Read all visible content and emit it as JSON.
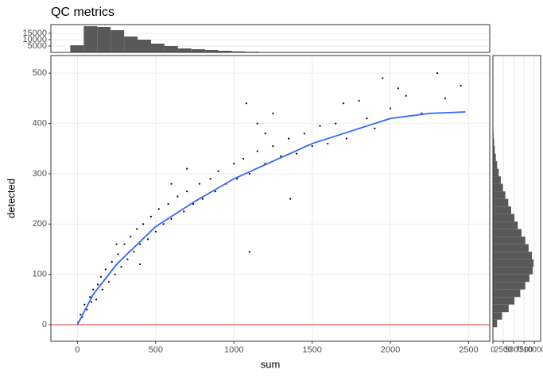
{
  "chart_data": [
    {
      "type": "scatter",
      "title": "QC metrics",
      "x_label": "sum",
      "y_label": "detected",
      "x": [
        5,
        20,
        30,
        45,
        60,
        80,
        90,
        100,
        120,
        130,
        150,
        160,
        180,
        200,
        220,
        240,
        260,
        280,
        300,
        320,
        340,
        360,
        380,
        400,
        420,
        450,
        470,
        500,
        520,
        550,
        580,
        600,
        640,
        680,
        700,
        740,
        780,
        800,
        850,
        880,
        900,
        950,
        1000,
        1020,
        1060,
        1100,
        1150,
        1200,
        1250,
        1300,
        1350,
        1400,
        1450,
        1500,
        1550,
        1600,
        1650,
        1700,
        1720,
        1800,
        1850,
        1900,
        1950,
        2000,
        2050,
        2100,
        2200,
        2300,
        2450,
        2350,
        1100,
        1080,
        1150,
        1250,
        1360,
        700,
        250,
        400,
        600,
        1200
      ],
      "y": [
        5,
        20,
        15,
        40,
        30,
        55,
        45,
        70,
        50,
        80,
        95,
        70,
        110,
        85,
        125,
        100,
        140,
        115,
        160,
        130,
        175,
        145,
        190,
        160,
        200,
        170,
        215,
        185,
        230,
        200,
        240,
        210,
        255,
        225,
        265,
        240,
        280,
        250,
        290,
        265,
        305,
        280,
        320,
        290,
        330,
        300,
        345,
        320,
        355,
        335,
        370,
        340,
        380,
        355,
        395,
        360,
        400,
        440,
        370,
        445,
        410,
        390,
        490,
        430,
        470,
        455,
        420,
        500,
        475,
        450,
        145,
        440,
        400,
        420,
        250,
        310,
        160,
        120,
        280,
        380
      ],
      "color": "#000000",
      "smooth": {
        "x": [
          0,
          100,
          250,
          500,
          750,
          1000,
          1250,
          1500,
          1750,
          2000,
          2250,
          2480
        ],
        "y": [
          0,
          60,
          120,
          195,
          245,
          290,
          325,
          360,
          385,
          410,
          420,
          423
        ],
        "color": "#3366ff"
      },
      "hline": {
        "value": 0,
        "color": "#e8302a"
      },
      "xlim": [
        -170,
        2635
      ],
      "ylim": [
        -33,
        535
      ],
      "xticks": [
        0,
        500,
        1000,
        1500,
        2000,
        2500
      ],
      "yticks": [
        0,
        100,
        200,
        300,
        400,
        500
      ],
      "grid": true
    },
    {
      "type": "histogram",
      "orientation": "vertical",
      "bins": [
        -46,
        40,
        126,
        212,
        298,
        384,
        470,
        556,
        642,
        728,
        814,
        900,
        986,
        1072,
        1158,
        1244,
        1330,
        1416
      ],
      "counts": [
        5600,
        20600,
        20000,
        17500,
        12500,
        10000,
        6900,
        5000,
        3100,
        2500,
        1900,
        1250,
        800,
        500,
        300,
        200,
        100
      ],
      "color": "#595959",
      "xlim": [
        -170,
        2635
      ],
      "ylim": [
        0,
        21875
      ],
      "yticks": [
        5000,
        10000,
        15000
      ],
      "grid": true
    },
    {
      "type": "histogram",
      "orientation": "horizontal",
      "bins": [
        -5,
        10,
        25,
        40,
        55,
        70,
        85,
        100,
        115,
        130,
        145,
        160,
        175,
        190,
        205,
        220,
        235,
        250,
        265,
        280,
        295,
        310,
        325,
        340,
        355,
        370,
        385,
        400,
        415
      ],
      "counts": [
        1000,
        2200,
        3800,
        5200,
        6600,
        7800,
        8800,
        9600,
        9800,
        9400,
        8600,
        7800,
        6900,
        6000,
        5200,
        4400,
        3700,
        3000,
        2400,
        1900,
        1400,
        1000,
        700,
        450,
        280,
        160,
        90,
        40
      ],
      "color": "#595959",
      "xlim": [
        0,
        11500
      ],
      "ylim": [
        -33,
        535
      ],
      "xticks": [
        0,
        2500,
        5000,
        7500,
        10000
      ],
      "grid": true
    }
  ]
}
